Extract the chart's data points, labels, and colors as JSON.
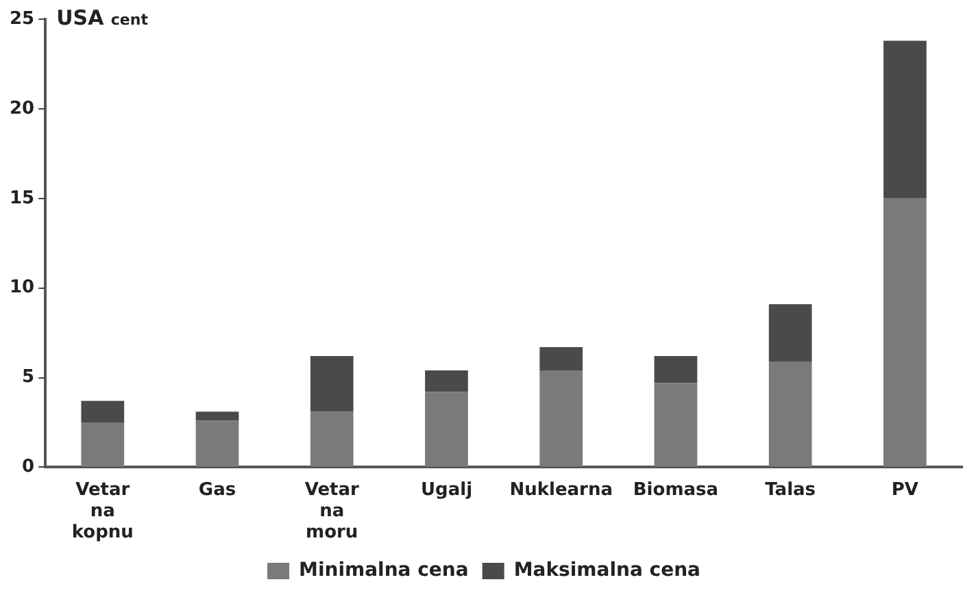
{
  "chart_data": {
    "type": "bar",
    "stacked": true,
    "ylabel": "USA cent",
    "categories": [
      "Vetar na kopnu",
      "Gas",
      "Vetar na moru",
      "Ugalj",
      "Nuklearna",
      "Biomasa",
      "Talas",
      "PV"
    ],
    "series": [
      {
        "name": "Minimalna cena",
        "color": "#7a7a7a",
        "values": [
          2.5,
          2.6,
          3.1,
          4.2,
          5.4,
          4.7,
          5.9,
          15.0
        ]
      },
      {
        "name": "Maksimalna cena",
        "color": "#4a4a4a",
        "values": [
          1.2,
          0.5,
          3.1,
          1.2,
          1.3,
          1.5,
          3.2,
          8.8
        ]
      }
    ],
    "ylim": [
      0,
      25
    ],
    "yticks": [
      0,
      5,
      10,
      15,
      20,
      25
    ],
    "grid": false,
    "legend": "bottom"
  }
}
